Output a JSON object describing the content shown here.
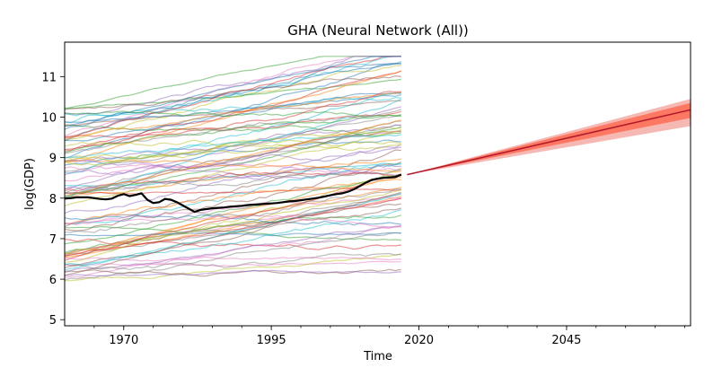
{
  "chart_data": {
    "type": "line",
    "title": "GHA (Neural Network (All))",
    "xlabel": "Time",
    "ylabel": "log(GDP)",
    "xlim": [
      1960,
      2066
    ],
    "ylim": [
      4.85,
      11.85
    ],
    "xticks": [
      1970,
      1995,
      2020,
      2045
    ],
    "xtick_labels": [
      "1970",
      "1995",
      "2020",
      "2045"
    ],
    "yticks": [
      5,
      6,
      7,
      8,
      9,
      10,
      11
    ],
    "ytick_labels": [
      "5",
      "6",
      "7",
      "8",
      "9",
      "10",
      "11"
    ],
    "grid": false,
    "legend": "none",
    "highlight_series": {
      "name": "GHA",
      "color": "#000000",
      "x": [
        1960,
        1961,
        1962,
        1963,
        1964,
        1965,
        1966,
        1967,
        1968,
        1969,
        1970,
        1971,
        1972,
        1973,
        1974,
        1975,
        1976,
        1977,
        1978,
        1979,
        1980,
        1981,
        1982,
        1983,
        1984,
        1985,
        1986,
        1987,
        1988,
        1989,
        1990,
        1991,
        1992,
        1993,
        1994,
        1995,
        1996,
        1997,
        1998,
        1999,
        2000,
        2001,
        2002,
        2003,
        2004,
        2005,
        2006,
        2007,
        2008,
        2009,
        2010,
        2011,
        2012,
        2013,
        2014,
        2015,
        2016,
        2017
      ],
      "y": [
        7.99,
        8.0,
        8.02,
        8.02,
        8.02,
        8.0,
        7.98,
        7.97,
        7.99,
        8.06,
        8.1,
        8.05,
        8.08,
        8.12,
        7.96,
        7.88,
        7.9,
        7.98,
        7.96,
        7.9,
        7.82,
        7.74,
        7.66,
        7.71,
        7.73,
        7.75,
        7.76,
        7.77,
        7.79,
        7.8,
        7.81,
        7.83,
        7.84,
        7.85,
        7.86,
        7.87,
        7.88,
        7.9,
        7.92,
        7.93,
        7.95,
        7.97,
        7.99,
        8.01,
        8.04,
        8.07,
        8.1,
        8.12,
        8.16,
        8.22,
        8.3,
        8.38,
        8.45,
        8.48,
        8.5,
        8.51,
        8.52,
        8.58
      ]
    },
    "forecast": {
      "color": "#b2182b",
      "x": [
        2018,
        2066
      ],
      "y": [
        8.58,
        10.18
      ],
      "band_inner_color": "#ff6347",
      "band_outer_color": "#f4a6a0",
      "inner_lower_end": 9.98,
      "inner_upper_end": 10.35,
      "outer_lower_end": 9.78,
      "outer_upper_end": 10.45
    },
    "background_series": {
      "count": 90,
      "x_start": 1960,
      "x_end": 2017,
      "y_range": [
        5.2,
        11.5
      ],
      "palette": [
        "#1f77b4",
        "#ff7f0e",
        "#2ca02c",
        "#d62728",
        "#9467bd",
        "#8c564b",
        "#e377c2",
        "#7f7f7f",
        "#bcbd22",
        "#17becf"
      ]
    }
  }
}
